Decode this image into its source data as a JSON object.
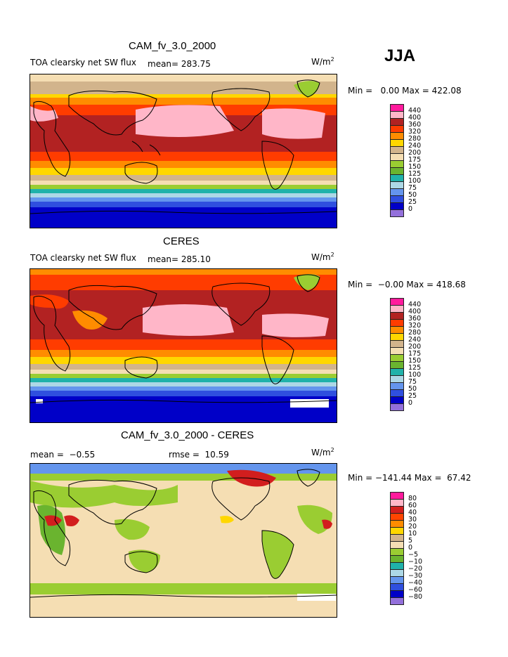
{
  "season": "JJA",
  "panels": [
    {
      "title": "CAM_fv_3.0_2000",
      "variable": "TOA clearsky net SW flux",
      "mean_text": "mean= 283.75",
      "rmse_text": "",
      "units_base": "W/m",
      "units_exp": "2",
      "minmax_text": "Min =   0.00 Max = 422.08",
      "levels": [
        "440",
        "400",
        "360",
        "320",
        "280",
        "240",
        "200",
        "175",
        "150",
        "125",
        "100",
        "75",
        "50",
        "25",
        "0"
      ],
      "colors": [
        "#ff1a9c",
        "#ffb6c8",
        "#b22222",
        "#ff3c00",
        "#ff8c00",
        "#ffd700",
        "#d2b48c",
        "#f5deb3",
        "#9acd32",
        "#6ab42f",
        "#20b2aa",
        "#add8e6",
        "#6495ed",
        "#2f4fdf",
        "#0000c8",
        "#9370db"
      ]
    },
    {
      "title": "CERES",
      "variable": "TOA clearsky net SW flux",
      "mean_text": "mean= 285.10",
      "rmse_text": "",
      "units_base": "W/m",
      "units_exp": "2",
      "minmax_text": "Min =  −0.00 Max = 418.68",
      "levels": [
        "440",
        "400",
        "360",
        "320",
        "280",
        "240",
        "200",
        "175",
        "150",
        "125",
        "100",
        "75",
        "50",
        "25",
        "0"
      ],
      "colors": [
        "#ff1a9c",
        "#ffb6c8",
        "#b22222",
        "#ff3c00",
        "#ff8c00",
        "#ffd700",
        "#d2b48c",
        "#f5deb3",
        "#9acd32",
        "#6ab42f",
        "#20b2aa",
        "#add8e6",
        "#6495ed",
        "#2f4fdf",
        "#0000c8",
        "#9370db"
      ]
    },
    {
      "title": "CAM_fv_3.0_2000 - CERES",
      "variable": "",
      "mean_text": "mean =  −0.55",
      "rmse_text": "rmse =  10.59",
      "units_base": "W/m",
      "units_exp": "2",
      "minmax_text": "Min = −141.44 Max =  67.42",
      "levels": [
        "80",
        "60",
        "40",
        "30",
        "20",
        "10",
        "5",
        "0",
        "−5",
        "−10",
        "−20",
        "−30",
        "−40",
        "−60",
        "−80"
      ],
      "colors": [
        "#ff1a9c",
        "#ffb6c8",
        "#d21e1e",
        "#ff4500",
        "#ff8c00",
        "#ffd700",
        "#d2b48c",
        "#f5deb3",
        "#9acd32",
        "#6ab42f",
        "#20b2aa",
        "#add8e6",
        "#6495ed",
        "#2f4fdf",
        "#0000c8",
        "#9370db"
      ]
    }
  ]
}
